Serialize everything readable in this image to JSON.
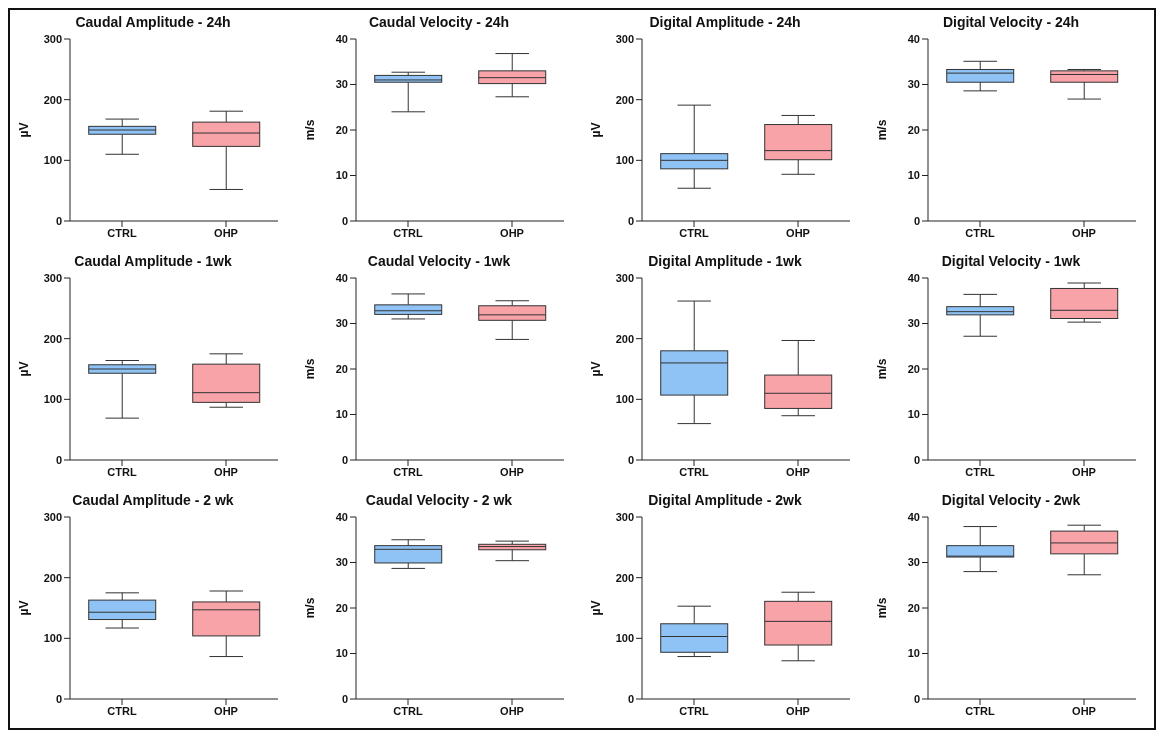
{
  "chart_data": [
    {
      "type": "box",
      "title": "Caudal Amplitude - 24h",
      "ylabel": "µV",
      "categories": [
        "CTRL",
        "OHP"
      ],
      "colors": [
        "#90c3f5",
        "#f7a3a8"
      ],
      "ylim": [
        0,
        300
      ],
      "yticks": [
        0,
        100,
        200,
        300
      ],
      "boxes": [
        {
          "low": 110,
          "q1": 143,
          "median": 150,
          "q3": 156,
          "high": 168
        },
        {
          "low": 52,
          "q1": 123,
          "median": 145,
          "q3": 163,
          "high": 181
        }
      ]
    },
    {
      "type": "box",
      "title": "Caudal Velocity - 24h",
      "ylabel": "m/s",
      "categories": [
        "CTRL",
        "OHP"
      ],
      "colors": [
        "#90c3f5",
        "#f7a3a8"
      ],
      "ylim": [
        0,
        40
      ],
      "yticks": [
        0,
        10,
        20,
        30,
        40
      ],
      "boxes": [
        {
          "low": 24,
          "q1": 30.5,
          "median": 31,
          "q3": 32,
          "high": 32.7
        },
        {
          "low": 27.3,
          "q1": 30.2,
          "median": 31.5,
          "q3": 33,
          "high": 36.8
        }
      ]
    },
    {
      "type": "box",
      "title": "Digital Amplitude - 24h",
      "ylabel": "µV",
      "categories": [
        "CTRL",
        "OHP"
      ],
      "colors": [
        "#90c3f5",
        "#f7a3a8"
      ],
      "ylim": [
        0,
        300
      ],
      "yticks": [
        0,
        100,
        200,
        300
      ],
      "boxes": [
        {
          "low": 54,
          "q1": 86,
          "median": 100,
          "q3": 111,
          "high": 191
        },
        {
          "low": 77,
          "q1": 101,
          "median": 116,
          "q3": 159,
          "high": 174
        }
      ]
    },
    {
      "type": "box",
      "title": "Digital Velocity - 24h",
      "ylabel": "m/s",
      "categories": [
        "CTRL",
        "OHP"
      ],
      "colors": [
        "#90c3f5",
        "#f7a3a8"
      ],
      "ylim": [
        0,
        40
      ],
      "yticks": [
        0,
        10,
        20,
        30,
        40
      ],
      "boxes": [
        {
          "low": 28.6,
          "q1": 30.5,
          "median": 32.5,
          "q3": 33.3,
          "high": 35.1
        },
        {
          "low": 26.8,
          "q1": 30.5,
          "median": 32.2,
          "q3": 33,
          "high": 33.3
        }
      ]
    },
    {
      "type": "box",
      "title": "Caudal Amplitude - 1wk",
      "ylabel": "µV",
      "categories": [
        "CTRL",
        "OHP"
      ],
      "colors": [
        "#90c3f5",
        "#f7a3a8"
      ],
      "ylim": [
        0,
        300
      ],
      "yticks": [
        0,
        100,
        200,
        300
      ],
      "boxes": [
        {
          "low": 69,
          "q1": 143,
          "median": 150,
          "q3": 157,
          "high": 164
        },
        {
          "low": 87,
          "q1": 95,
          "median": 111,
          "q3": 158,
          "high": 175
        }
      ]
    },
    {
      "type": "box",
      "title": "Caudal Velocity - 1wk",
      "ylabel": "m/s",
      "categories": [
        "CTRL",
        "OHP"
      ],
      "colors": [
        "#90c3f5",
        "#f7a3a8"
      ],
      "ylim": [
        0,
        40
      ],
      "yticks": [
        0,
        10,
        20,
        30,
        40
      ],
      "boxes": [
        {
          "low": 31,
          "q1": 32,
          "median": 32.8,
          "q3": 34.1,
          "high": 36.5
        },
        {
          "low": 26.5,
          "q1": 30.7,
          "median": 31.9,
          "q3": 33.9,
          "high": 35
        }
      ]
    },
    {
      "type": "box",
      "title": "Digital Amplitude - 1wk",
      "ylabel": "µV",
      "categories": [
        "CTRL",
        "OHP"
      ],
      "colors": [
        "#90c3f5",
        "#f7a3a8"
      ],
      "ylim": [
        0,
        300
      ],
      "yticks": [
        0,
        100,
        200,
        300
      ],
      "boxes": [
        {
          "low": 60,
          "q1": 107,
          "median": 160,
          "q3": 180,
          "high": 262
        },
        {
          "low": 73,
          "q1": 85,
          "median": 110,
          "q3": 140,
          "high": 197
        }
      ]
    },
    {
      "type": "box",
      "title": "Digital Velocity - 1wk",
      "ylabel": "m/s",
      "categories": [
        "CTRL",
        "OHP"
      ],
      "colors": [
        "#90c3f5",
        "#f7a3a8"
      ],
      "ylim": [
        0,
        40
      ],
      "yticks": [
        0,
        10,
        20,
        30,
        40
      ],
      "boxes": [
        {
          "low": 27.2,
          "q1": 31.9,
          "median": 32.6,
          "q3": 33.7,
          "high": 36.4
        },
        {
          "low": 30.3,
          "q1": 31.1,
          "median": 32.9,
          "q3": 37.7,
          "high": 38.9
        }
      ]
    },
    {
      "type": "box",
      "title": "Caudal Amplitude - 2 wk",
      "ylabel": "µV",
      "categories": [
        "CTRL",
        "OHP"
      ],
      "colors": [
        "#90c3f5",
        "#f7a3a8"
      ],
      "ylim": [
        0,
        300
      ],
      "yticks": [
        0,
        100,
        200,
        300
      ],
      "boxes": [
        {
          "low": 117,
          "q1": 131,
          "median": 143,
          "q3": 163,
          "high": 175
        },
        {
          "low": 70,
          "q1": 104,
          "median": 147,
          "q3": 160,
          "high": 178
        }
      ]
    },
    {
      "type": "box",
      "title": "Caudal Velocity - 2 wk",
      "ylabel": "m/s",
      "categories": [
        "CTRL",
        "OHP"
      ],
      "colors": [
        "#90c3f5",
        "#f7a3a8"
      ],
      "ylim": [
        0,
        40
      ],
      "yticks": [
        0,
        10,
        20,
        30,
        40
      ],
      "boxes": [
        {
          "low": 28.7,
          "q1": 29.9,
          "median": 32.9,
          "q3": 33.7,
          "high": 35
        },
        {
          "low": 30.4,
          "q1": 32.8,
          "median": 33.5,
          "q3": 34,
          "high": 34.7
        }
      ]
    },
    {
      "type": "box",
      "title": "Digital Amplitude - 2wk",
      "ylabel": "µV",
      "categories": [
        "CTRL",
        "OHP"
      ],
      "colors": [
        "#90c3f5",
        "#f7a3a8"
      ],
      "ylim": [
        0,
        300
      ],
      "yticks": [
        0,
        100,
        200,
        300
      ],
      "boxes": [
        {
          "low": 70,
          "q1": 77,
          "median": 103,
          "q3": 124,
          "high": 153
        },
        {
          "low": 63,
          "q1": 89,
          "median": 128,
          "q3": 161,
          "high": 176
        }
      ]
    },
    {
      "type": "box",
      "title": "Digital Velocity - 2wk",
      "ylabel": "m/s",
      "categories": [
        "CTRL",
        "OHP"
      ],
      "colors": [
        "#90c3f5",
        "#f7a3a8"
      ],
      "ylim": [
        0,
        40
      ],
      "yticks": [
        0,
        10,
        20,
        30,
        40
      ],
      "boxes": [
        {
          "low": 28,
          "q1": 31.2,
          "median": 31.4,
          "q3": 33.7,
          "high": 37.9
        },
        {
          "low": 27.3,
          "q1": 31.9,
          "median": 34.3,
          "q3": 36.9,
          "high": 38.2
        }
      ]
    }
  ]
}
